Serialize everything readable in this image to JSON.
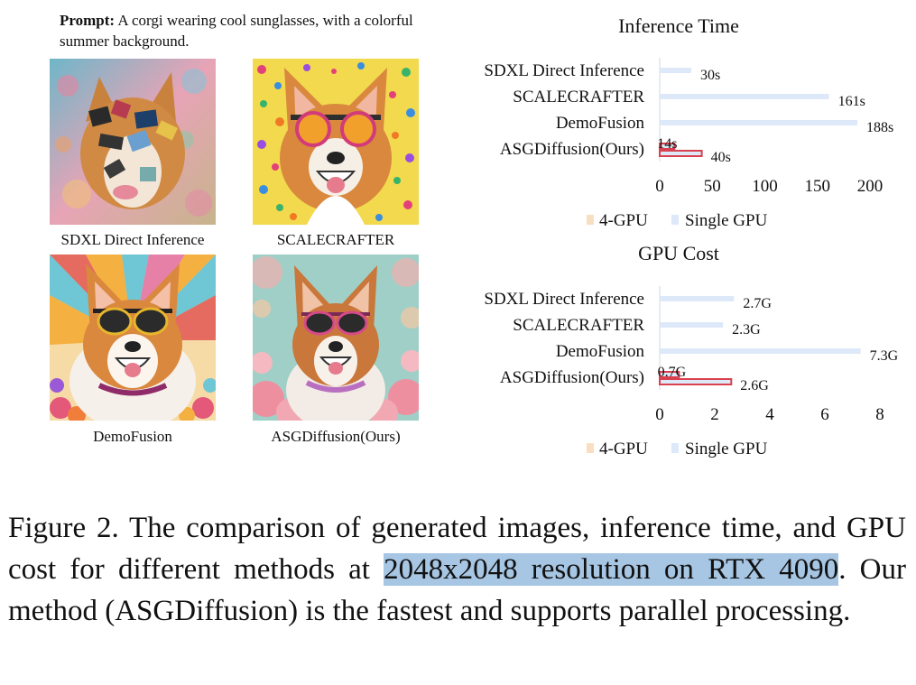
{
  "prompt": {
    "label": "Prompt:",
    "text": "A corgi wearing cool sunglasses, with a colorful summer background."
  },
  "images": [
    {
      "caption": "SDXL Direct Inference"
    },
    {
      "caption": "SCALECRAFTER"
    },
    {
      "caption": "DemoFusion"
    },
    {
      "caption": "ASGDiffusion(Ours)"
    }
  ],
  "colors": {
    "single_gpu": "#dde9f8",
    "four_gpu_legend": "#f9dfc2",
    "four_gpu_bar_edge": "#d9414e",
    "highlight": "#a7c6e3"
  },
  "chart_data": [
    {
      "type": "bar",
      "orientation": "horizontal",
      "title": "Inference Time",
      "categories": [
        "SDXL Direct Inference",
        "SCALECRAFTER",
        "DemoFusion",
        "ASGDiffusion(Ours)"
      ],
      "series": [
        {
          "name": "4-GPU",
          "values": [
            null,
            null,
            null,
            14
          ],
          "labels": [
            "",
            "",
            "",
            "14s"
          ]
        },
        {
          "name": "Single GPU",
          "values": [
            30,
            161,
            188,
            40
          ],
          "labels": [
            "30s",
            "161s",
            "188s",
            "40s"
          ]
        }
      ],
      "xticks": [
        "0",
        "50",
        "100",
        "150",
        "200"
      ],
      "xlim": [
        0,
        200
      ],
      "legend": "bottom"
    },
    {
      "type": "bar",
      "orientation": "horizontal",
      "title": "GPU Cost",
      "categories": [
        "SDXL Direct Inference",
        "SCALECRAFTER",
        "DemoFusion",
        "ASGDiffusion(Ours)"
      ],
      "series": [
        {
          "name": "4-GPU",
          "values": [
            null,
            null,
            null,
            0.7
          ],
          "labels": [
            "",
            "",
            "",
            "0.7G"
          ]
        },
        {
          "name": "Single GPU",
          "values": [
            2.7,
            2.3,
            7.3,
            2.6
          ],
          "labels": [
            "2.7G",
            "2.3G",
            "7.3G",
            "2.6G"
          ]
        }
      ],
      "xticks": [
        "0",
        "2",
        "4",
        "6",
        "8"
      ],
      "xlim": [
        0,
        8
      ],
      "legend": "bottom"
    }
  ],
  "caption": {
    "part1": "Figure 2.  The comparison of generated images, inference time, and GPU cost for different methods at ",
    "highlight": "2048x2048 resolution on RTX 4090",
    "part2": ". Our method (ASGDiffusion) is the fastest and supports parallel processing."
  }
}
